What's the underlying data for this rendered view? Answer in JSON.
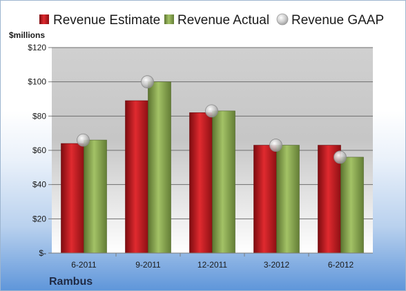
{
  "company": "Rambus",
  "colors": {
    "estimate": "#c0171c",
    "actual": "#8aa84e",
    "gaap": "#b3b3b3"
  },
  "chart_data": {
    "type": "bar",
    "categories": [
      "6-2011",
      "9-2011",
      "12-2011",
      "3-2012",
      "6-2012"
    ],
    "series": [
      {
        "name": "Revenue Estimate",
        "type": "bar",
        "values": [
          64,
          89,
          82,
          63,
          63
        ]
      },
      {
        "name": "Revenue Actual",
        "type": "bar",
        "values": [
          66,
          100,
          83,
          63,
          56
        ]
      },
      {
        "name": "Revenue GAAP",
        "type": "scatter",
        "values": [
          66,
          100,
          83,
          63,
          56
        ]
      }
    ],
    "ylabel": "$millions",
    "ylim": [
      0,
      120
    ],
    "yticks": [
      0,
      20,
      40,
      60,
      80,
      100,
      120
    ],
    "ytick_labels": [
      "$-",
      "$20",
      "$40",
      "$60",
      "$80",
      "$100",
      "$120"
    ],
    "grid": true,
    "legend_position": "top"
  }
}
